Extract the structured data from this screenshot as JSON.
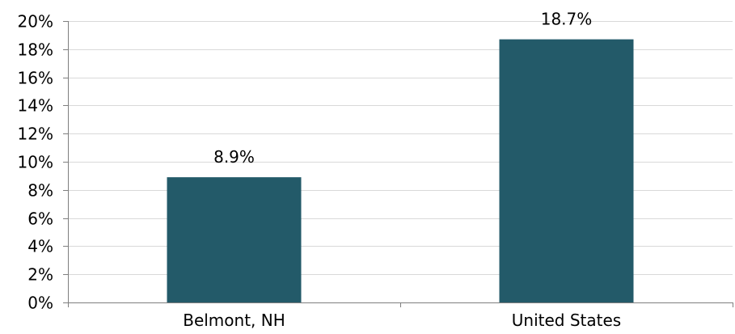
{
  "chart_data": {
    "type": "bar",
    "categories": [
      "Belmont, NH",
      "United States"
    ],
    "values": [
      8.9,
      18.7
    ],
    "data_labels": [
      "8.9%",
      "18.7%"
    ],
    "title": "",
    "xlabel": "",
    "ylabel": "",
    "ylim": [
      0,
      20
    ],
    "yticks": [
      0,
      2,
      4,
      6,
      8,
      10,
      12,
      14,
      16,
      18,
      20
    ],
    "ytick_labels": [
      "0%",
      "2%",
      "4%",
      "6%",
      "8%",
      "10%",
      "12%",
      "14%",
      "16%",
      "18%",
      "20%"
    ],
    "grid": true,
    "legend": "none",
    "bar_color": "#235a69",
    "grid_color": "#d9d9d9",
    "axis_color": "#7f7f7f"
  }
}
